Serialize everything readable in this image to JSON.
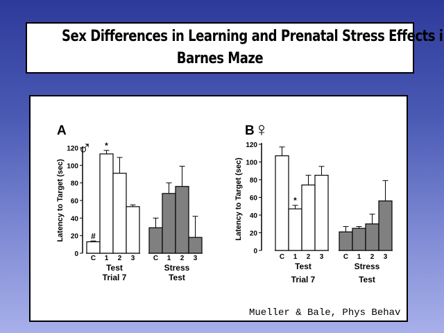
{
  "slide": {
    "title_line1": "Sex Differences in Learning and Prenatal Stress Effects in",
    "title_line2": "Barnes Maze",
    "citation": "Mueller & Bale, Phys Behav",
    "colors": {
      "background_top": "#2e3a9a",
      "background_bottom": "#a8b0ea",
      "test_bars": "#ffffff",
      "stress_bars": "#808080"
    }
  },
  "chart_data": [
    {
      "type": "bar",
      "panel_label": "A",
      "symbol": "♂",
      "ylabel": "Latency to Target (sec)",
      "ylim": [
        0,
        120
      ],
      "yticks": [
        "0",
        "20",
        "40",
        "60",
        "80",
        "100",
        "120"
      ],
      "groups": [
        {
          "label_line1": "Test",
          "label_line2": "Trial 7",
          "color": "#ffffff",
          "categories": [
            "C",
            "1",
            "2",
            "3"
          ],
          "values": [
            13,
            113,
            91,
            53
          ],
          "errors": [
            1,
            4,
            18,
            2
          ],
          "annotations": [
            "#",
            "*",
            "",
            ""
          ]
        },
        {
          "label_line1": "Stress",
          "label_line2": "Test",
          "color": "#808080",
          "categories": [
            "C",
            "1",
            "2",
            "3"
          ],
          "values": [
            29,
            68,
            76,
            18
          ],
          "errors": [
            11,
            12,
            23,
            24
          ],
          "annotations": [
            "",
            "",
            "",
            ""
          ]
        }
      ]
    },
    {
      "type": "bar",
      "panel_label": "B",
      "symbol": "♀",
      "ylabel": "Latency to Target (sec)",
      "ylim": [
        0,
        120
      ],
      "yticks": [
        "0",
        "20",
        "40",
        "60",
        "80",
        "100",
        "120"
      ],
      "groups": [
        {
          "label_line1": "Test",
          "label_line2": "Trial 7",
          "color": "#ffffff",
          "categories": [
            "C",
            "1",
            "2",
            "3"
          ],
          "values": [
            107,
            47,
            74,
            85
          ],
          "errors": [
            10,
            4,
            11,
            10
          ],
          "annotations": [
            "",
            "*",
            "",
            ""
          ]
        },
        {
          "label_line1": "Stress",
          "label_line2": "Test",
          "color": "#808080",
          "categories": [
            "C",
            "1",
            "2",
            "3"
          ],
          "values": [
            21,
            25,
            30,
            56
          ],
          "errors": [
            6,
            2,
            11,
            23
          ],
          "annotations": [
            "",
            "",
            "",
            ""
          ]
        }
      ]
    }
  ]
}
